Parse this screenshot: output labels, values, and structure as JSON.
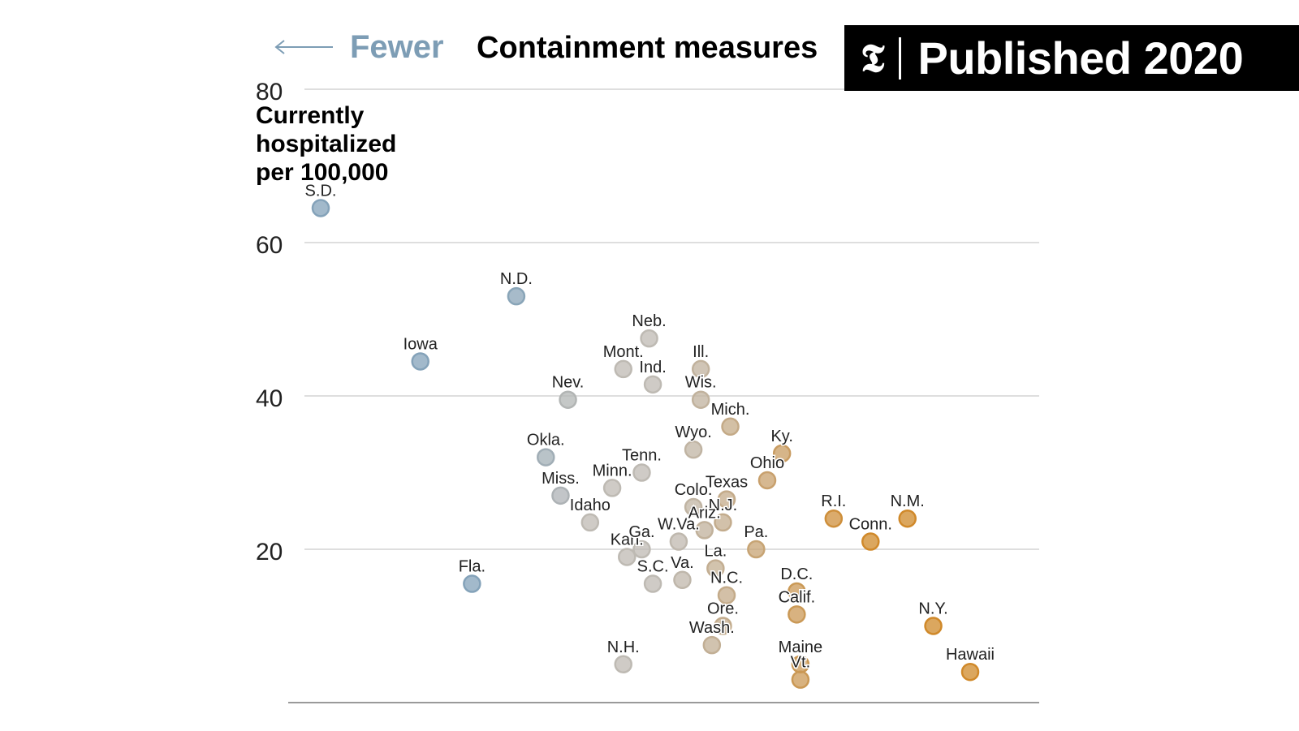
{
  "header": {
    "arrow_label": "Fewer",
    "title": "Containment measures"
  },
  "badge": {
    "icon": "nyt-t-logo-icon",
    "label": "Published 2020"
  },
  "colors": {
    "fewer": "#8fb0c9",
    "neutral": "#cfcac3",
    "more": "#e2952e"
  },
  "chart_data": {
    "type": "scatter",
    "title": "",
    "ylabel": "Currently hospitalized per 100,000",
    "ylabel_lines": [
      "Currently",
      "hospitalized",
      "per 100,000"
    ],
    "xlabel": "Containment measures",
    "ylim": [
      0,
      80
    ],
    "y_ticks": [
      "80",
      "60",
      "40",
      "20"
    ],
    "x_scale": "containment index, arbitrary 0-100 (no ticks shown)",
    "grid": true,
    "points": [
      {
        "label": "S.D.",
        "x": 2.5,
        "y": 64.5
      },
      {
        "label": "N.D.",
        "x": 29,
        "y": 53
      },
      {
        "label": "Iowa",
        "x": 16,
        "y": 44.5
      },
      {
        "label": "Nev.",
        "x": 36,
        "y": 39.5
      },
      {
        "label": "Okla.",
        "x": 33,
        "y": 32
      },
      {
        "label": "Miss.",
        "x": 35,
        "y": 27
      },
      {
        "label": "Idaho",
        "x": 39,
        "y": 23.5
      },
      {
        "label": "Fla.",
        "x": 23,
        "y": 15.5
      },
      {
        "label": "Neb.",
        "x": 47,
        "y": 47.5
      },
      {
        "label": "Mont.",
        "x": 43.5,
        "y": 43.5
      },
      {
        "label": "Ind.",
        "x": 47.5,
        "y": 41.5
      },
      {
        "label": "Tenn.",
        "x": 46,
        "y": 30
      },
      {
        "label": "Minn.",
        "x": 42,
        "y": 28
      },
      {
        "label": "Kan.",
        "x": 44,
        "y": 19
      },
      {
        "label": "Ga.",
        "x": 46,
        "y": 20
      },
      {
        "label": "S.C.",
        "x": 47.5,
        "y": 15.5
      },
      {
        "label": "N.H.",
        "x": 43.5,
        "y": 5
      },
      {
        "label": "W.Va.",
        "x": 51,
        "y": 21
      },
      {
        "label": "Va.",
        "x": 51.5,
        "y": 16
      },
      {
        "label": "Ill.",
        "x": 54,
        "y": 43.5
      },
      {
        "label": "Wis.",
        "x": 54,
        "y": 39.5
      },
      {
        "label": "Mich.",
        "x": 58,
        "y": 36
      },
      {
        "label": "Wyo.",
        "x": 53,
        "y": 33
      },
      {
        "label": "Colo.",
        "x": 53,
        "y": 25.5
      },
      {
        "label": "Texas",
        "x": 57.5,
        "y": 26.5
      },
      {
        "label": "N.J.",
        "x": 57,
        "y": 23.5
      },
      {
        "label": "Ariz.",
        "x": 54.5,
        "y": 22.5
      },
      {
        "label": "La.",
        "x": 56,
        "y": 17.5
      },
      {
        "label": "N.C.",
        "x": 57.5,
        "y": 14
      },
      {
        "label": "Ore.",
        "x": 57,
        "y": 10
      },
      {
        "label": "Wash.",
        "x": 55.5,
        "y": 7.5
      },
      {
        "label": "Ky.",
        "x": 65,
        "y": 32.5
      },
      {
        "label": "Ohio",
        "x": 63,
        "y": 29
      },
      {
        "label": "Pa.",
        "x": 61.5,
        "y": 20
      },
      {
        "label": "D.C.",
        "x": 67,
        "y": 14.5
      },
      {
        "label": "Calif.",
        "x": 67,
        "y": 11.5
      },
      {
        "label": "Maine",
        "x": 67.5,
        "y": 5
      },
      {
        "label": "Vt.",
        "x": 67.5,
        "y": 3
      },
      {
        "label": "R.I.",
        "x": 72,
        "y": 24
      },
      {
        "label": "Conn.",
        "x": 77,
        "y": 21
      },
      {
        "label": "N.M.",
        "x": 82,
        "y": 24
      },
      {
        "label": "N.Y.",
        "x": 85.5,
        "y": 10
      },
      {
        "label": "Hawaii",
        "x": 90.5,
        "y": 4
      }
    ]
  }
}
